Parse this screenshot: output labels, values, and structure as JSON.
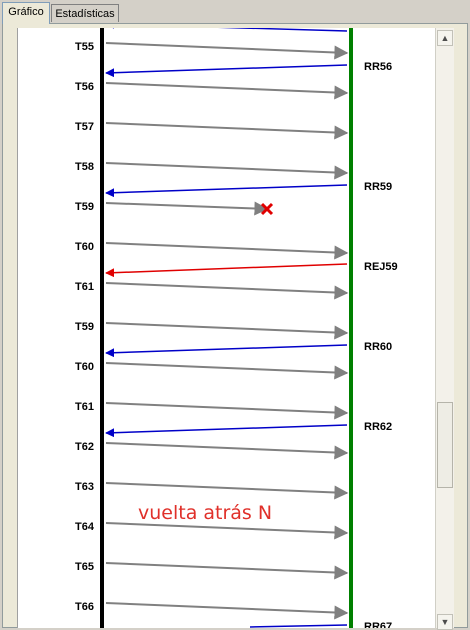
{
  "tabs": [
    {
      "label": "Gráfico",
      "active": true
    },
    {
      "label": "Estadísticas",
      "active": false
    }
  ],
  "diagram": {
    "left_labels": [
      "T55",
      "T56",
      "T57",
      "T58",
      "T59",
      "T60",
      "T61",
      "T59",
      "T60",
      "T61",
      "T62",
      "T63",
      "T64",
      "T65",
      "T66"
    ],
    "right_labels": [
      "RR56",
      "RR59",
      "REJ59",
      "RR60",
      "RR62",
      "RR67"
    ],
    "annotation": "vuelta atrás N",
    "colors": {
      "left_axis": "#000000",
      "right_axis": "#008000",
      "forward_arrow": "#808080",
      "ack_arrow": "#0000c8",
      "reject_arrow": "#e00000",
      "lost_marker": "#e00000"
    }
  },
  "scrollbar": {
    "up_icon": "up-arrow-icon",
    "down_icon": "down-arrow-icon"
  }
}
